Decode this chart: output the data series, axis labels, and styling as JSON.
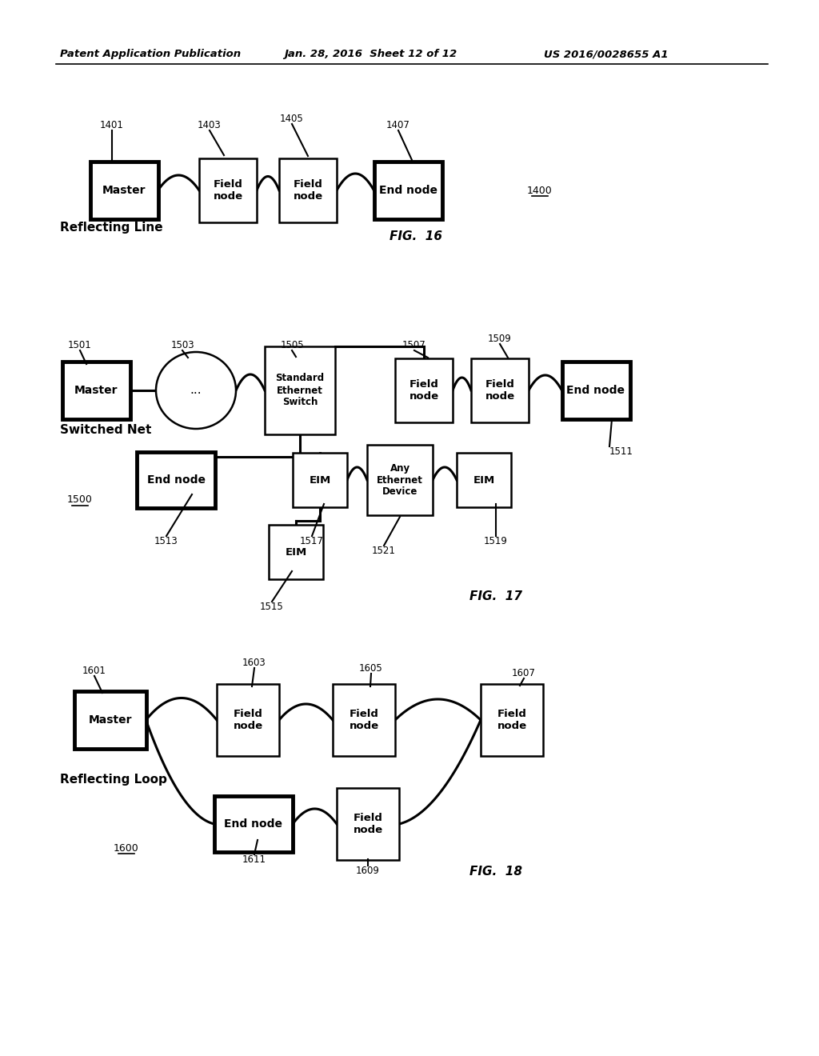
{
  "bg_color": "#ffffff",
  "header_text": "Patent Application Publication",
  "header_date": "Jan. 28, 2016  Sheet 12 of 12",
  "header_patent": "US 2016/0028655 A1"
}
